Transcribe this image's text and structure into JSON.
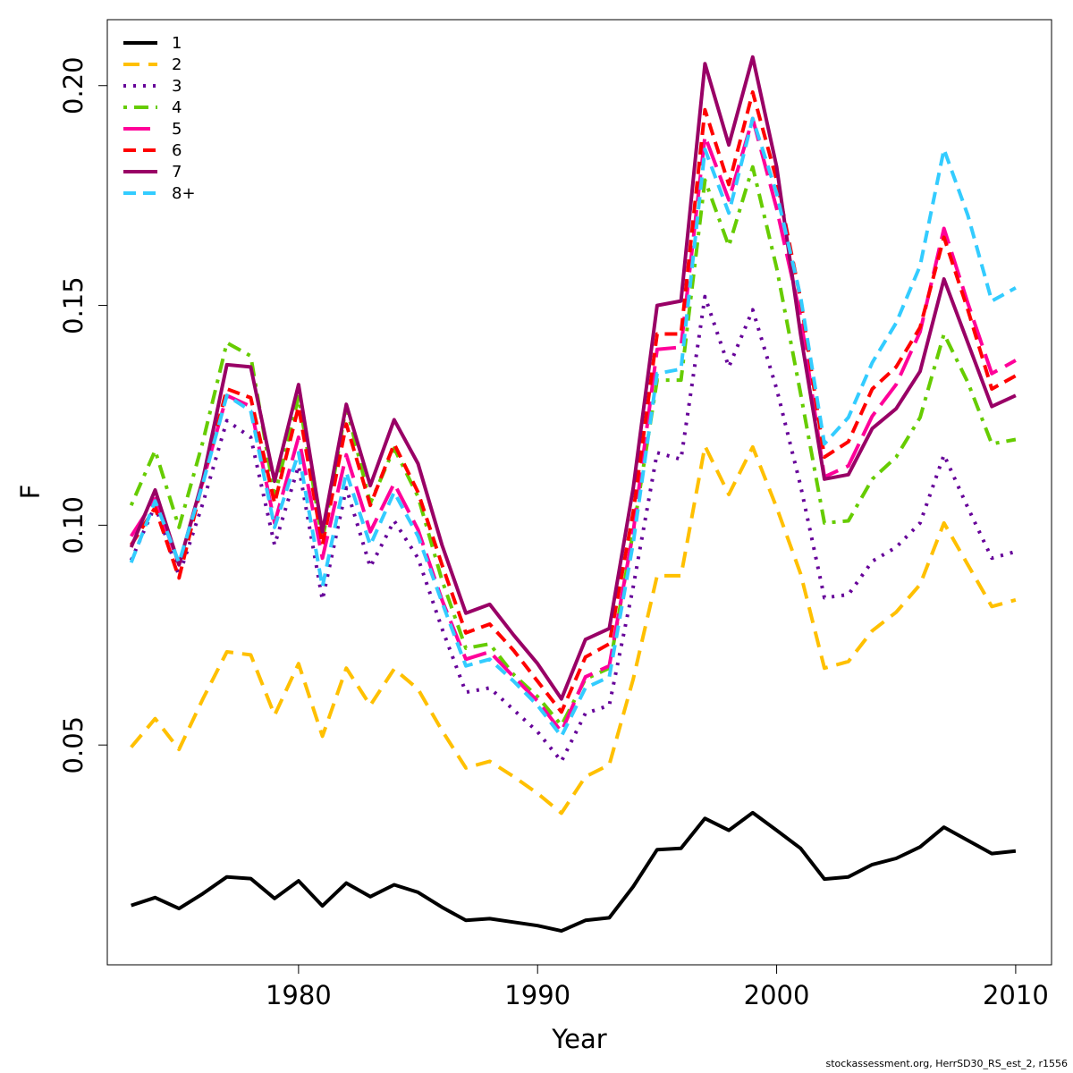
{
  "chart_data": {
    "type": "line",
    "xlabel": "Year",
    "ylabel": "F",
    "xlim": [
      1972,
      2011.5
    ],
    "ylim": [
      0.0,
      0.215
    ],
    "xticks": [
      1980,
      1990,
      2000,
      2010
    ],
    "yticks": [
      0.05,
      0.1,
      0.15,
      0.2
    ],
    "ytick_labels": [
      "0.05",
      "0.10",
      "0.15",
      "0.20"
    ],
    "grid": false,
    "legend_position": "top-left",
    "x": [
      1973,
      1974,
      1975,
      1976,
      1977,
      1978,
      1979,
      1980,
      1981,
      1982,
      1983,
      1984,
      1985,
      1986,
      1987,
      1988,
      1989,
      1990,
      1991,
      1992,
      1993,
      1994,
      1995,
      1996,
      1997,
      1998,
      1999,
      2000,
      2001,
      2002,
      2003,
      2004,
      2005,
      2006,
      2007,
      2008,
      2009,
      2010
    ],
    "series": [
      {
        "name": "1",
        "color": "#000000",
        "dash": "solid",
        "values": [
          0.0135,
          0.0153,
          0.0128,
          0.0162,
          0.02,
          0.0196,
          0.0151,
          0.0191,
          0.0134,
          0.0186,
          0.0155,
          0.0182,
          0.0165,
          0.0131,
          0.0101,
          0.0105,
          0.0097,
          0.0089,
          0.0077,
          0.0101,
          0.0107,
          0.0178,
          0.0262,
          0.0265,
          0.0333,
          0.0306,
          0.0346,
          0.0306,
          0.0265,
          0.0195,
          0.02,
          0.0228,
          0.0242,
          0.0268,
          0.0313,
          0.0283,
          0.0253,
          0.0259
        ]
      },
      {
        "name": "2",
        "color": "#FFC000",
        "dash": "long",
        "values": [
          0.0495,
          0.056,
          0.049,
          0.0605,
          0.0712,
          0.0705,
          0.0568,
          0.0685,
          0.052,
          0.0675,
          0.059,
          0.0673,
          0.0627,
          0.0533,
          0.0448,
          0.0463,
          0.0428,
          0.039,
          0.0345,
          0.0428,
          0.0455,
          0.065,
          0.0885,
          0.0885,
          0.118,
          0.107,
          0.1178,
          0.104,
          0.089,
          0.0675,
          0.069,
          0.076,
          0.0802,
          0.0865,
          0.1005,
          0.091,
          0.0815,
          0.083
        ]
      },
      {
        "name": "3",
        "color": "#660099",
        "dash": "dotted",
        "values": [
          0.092,
          0.1045,
          0.0885,
          0.105,
          0.1238,
          0.12,
          0.0955,
          0.1135,
          0.083,
          0.1085,
          0.0905,
          0.101,
          0.0925,
          0.0765,
          0.062,
          0.063,
          0.058,
          0.053,
          0.0463,
          0.0572,
          0.059,
          0.086,
          0.1165,
          0.115,
          0.152,
          0.136,
          0.149,
          0.131,
          0.109,
          0.0835,
          0.0842,
          0.0918,
          0.095,
          0.1005,
          0.116,
          0.104,
          0.0925,
          0.094
        ]
      },
      {
        "name": "4",
        "color": "#66CC00",
        "dash": "dashdot",
        "values": [
          0.1045,
          0.117,
          0.0995,
          0.119,
          0.1415,
          0.1385,
          0.1065,
          0.1292,
          0.0965,
          0.127,
          0.105,
          0.1175,
          0.1065,
          0.0875,
          0.072,
          0.073,
          0.066,
          0.061,
          0.0545,
          0.065,
          0.0675,
          0.0985,
          0.133,
          0.133,
          0.1785,
          0.1635,
          0.1815,
          0.1585,
          0.13,
          0.1005,
          0.101,
          0.1105,
          0.1155,
          0.1245,
          0.1435,
          0.1325,
          0.1185,
          0.1195
        ]
      },
      {
        "name": "5",
        "color": "#FF0099",
        "dash": "verylong",
        "values": [
          0.0975,
          0.106,
          0.091,
          0.11,
          0.1295,
          0.127,
          0.1005,
          0.12,
          0.0925,
          0.116,
          0.0985,
          0.1095,
          0.099,
          0.083,
          0.0695,
          0.0712,
          0.0655,
          0.06,
          0.053,
          0.0655,
          0.068,
          0.0985,
          0.14,
          0.1405,
          0.1885,
          0.174,
          0.1925,
          0.172,
          0.1475,
          0.111,
          0.1135,
          0.1248,
          0.132,
          0.144,
          0.1675,
          0.1505,
          0.1345,
          0.1375
        ]
      },
      {
        "name": "6",
        "color": "#FF0000",
        "dash": "dashed",
        "values": [
          0.0955,
          0.104,
          0.088,
          0.11,
          0.131,
          0.129,
          0.105,
          0.127,
          0.0955,
          0.123,
          0.1045,
          0.1185,
          0.1075,
          0.091,
          0.0755,
          0.0775,
          0.0715,
          0.0645,
          0.0575,
          0.07,
          0.073,
          0.103,
          0.1435,
          0.1435,
          0.1945,
          0.1775,
          0.1985,
          0.1785,
          0.1515,
          0.1155,
          0.119,
          0.131,
          0.136,
          0.145,
          0.1655,
          0.149,
          0.131,
          0.134
        ]
      },
      {
        "name": "7",
        "color": "#990066",
        "dash": "solid",
        "values": [
          0.095,
          0.108,
          0.091,
          0.1105,
          0.1365,
          0.136,
          0.11,
          0.132,
          0.0985,
          0.1275,
          0.109,
          0.124,
          0.114,
          0.0955,
          0.08,
          0.082,
          0.075,
          0.0685,
          0.0605,
          0.074,
          0.0765,
          0.1085,
          0.15,
          0.151,
          0.205,
          0.1865,
          0.2065,
          0.1815,
          0.1435,
          0.1105,
          0.1115,
          0.122,
          0.1265,
          0.135,
          0.156,
          0.1415,
          0.127,
          0.1295
        ]
      },
      {
        "name": "8+",
        "color": "#33CCFF",
        "dash": "dashed",
        "values": [
          0.0915,
          0.1055,
          0.0915,
          0.1095,
          0.1295,
          0.126,
          0.0995,
          0.1165,
          0.086,
          0.112,
          0.0955,
          0.1075,
          0.0975,
          0.0825,
          0.068,
          0.0695,
          0.0645,
          0.059,
          0.052,
          0.063,
          0.0655,
          0.096,
          0.1345,
          0.1355,
          0.1855,
          0.171,
          0.1925,
          0.1755,
          0.152,
          0.1185,
          0.1245,
          0.137,
          0.146,
          0.159,
          0.1855,
          0.1705,
          0.151,
          0.154
        ]
      }
    ]
  },
  "credit": "stockassessment.org, HerrSD30_RS_est_2, r1556"
}
